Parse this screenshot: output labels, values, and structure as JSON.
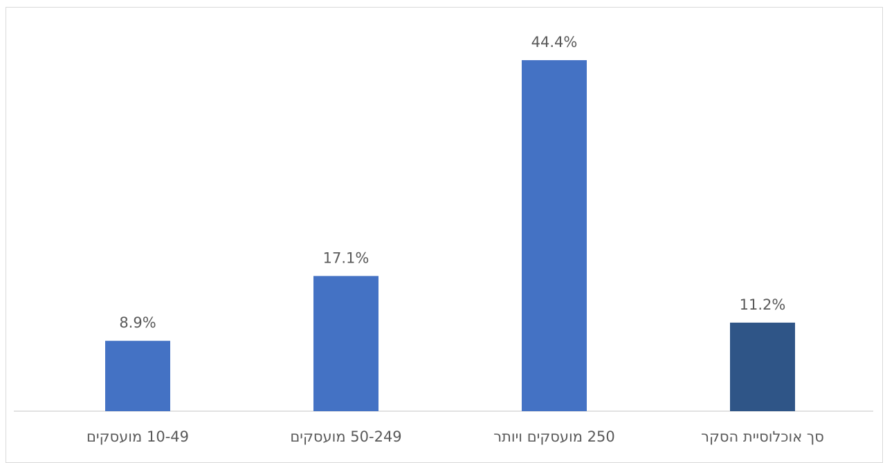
{
  "chart_data": {
    "type": "bar",
    "categories": [
      "10-49 מועסקים",
      "50-249 מועסקים",
      "250 מועסקים ויותר",
      "סך אוכלוסיית הסקר"
    ],
    "values": [
      8.9,
      17.1,
      44.4,
      11.2
    ],
    "data_labels": [
      "8.9%",
      "17.1%",
      "44.4%",
      "11.2%"
    ],
    "ylim": [
      0,
      50
    ],
    "grid": false,
    "legend": "none",
    "colors": [
      "#4472c4",
      "#4472c4",
      "#4472c4",
      "#2f5587"
    ]
  }
}
